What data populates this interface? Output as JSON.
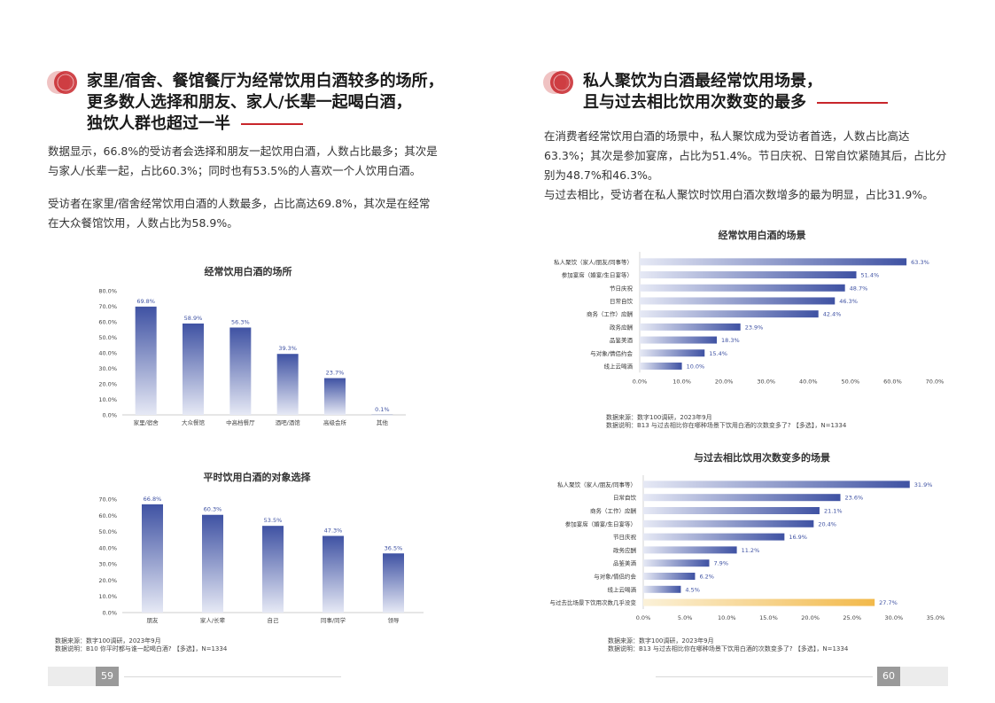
{
  "left": {
    "heading": [
      "家里/宿舍、餐馆餐厅为经常饮用白酒较多的场所，",
      "更多数人选择和朋友、家人/长辈一起喝白酒，",
      "独饮人群也超过一半"
    ],
    "para1": [
      "数据显示，66.8%的受访者会选择和朋友一起饮用白酒，人数占比最多；其次是",
      "与家人/长辈一起，占比60.3%；同时也有53.5%的人喜欢一个人饮用白酒。"
    ],
    "para2": [
      "受访者在家里/宿舍经常饮用白酒的人数最多，占比高达69.8%，其次是在经常",
      "在大众餐馆饮用，人数占比为58.9%。"
    ],
    "source": [
      "数据来源：数字100调研，2023年9月",
      "数据说明：B10 你平时都与谁一起喝白酒? 【多选】，N=1334"
    ],
    "page_number": "59"
  },
  "right": {
    "heading": [
      "私人聚饮为白酒最经常饮用场景，",
      "且与过去相比饮用次数变的最多"
    ],
    "para": [
      "在消费者经常饮用白酒的场景中，私人聚饮成为受访者首选，人数占比高达",
      "63.3%；其次是参加宴席，占比为51.4%。节日庆祝、日常自饮紧随其后，占比分",
      "别为48.7%和46.3%。",
      "与过去相比，受访者在私人聚饮时饮用白酒次数增多的最为明显，占比31.9%。"
    ],
    "source1": [
      "数据来源：数字100调研，2023年9月",
      "数据说明：B13 与过去相比你在哪种场景下饮用白酒的次数变多了? 【多选】，N=1334"
    ],
    "source2": [
      "数据来源：数字100调研，2023年9月",
      "数据说明：B13 与过去相比你在哪种场景下饮用白酒的次数变多了? 【多选】，N=1334"
    ],
    "page_number": "60"
  },
  "colors": {
    "bar_top": "#3f52a3",
    "bar_bottom": "#e6e9f5",
    "accent_red": "#c8262b",
    "highlight_bar": "#f2b94a",
    "label_color": "#3f52a3"
  },
  "chart_data": [
    {
      "id": "places",
      "type": "bar",
      "title": "经常饮用白酒的场所",
      "categories": [
        "家里/宿舍",
        "大众餐馆",
        "中高档餐厅",
        "酒吧/酒馆",
        "高级会所",
        "其他"
      ],
      "values": [
        69.8,
        58.9,
        56.3,
        39.3,
        23.7,
        0.1
      ],
      "labels": [
        "69.8%",
        "58.9%",
        "56.3%",
        "39.3%",
        "23.7%",
        "0.1%"
      ],
      "ylim": [
        0,
        80
      ],
      "yticks": [
        "0.0%",
        "10.0%",
        "20.0%",
        "30.0%",
        "40.0%",
        "50.0%",
        "60.0%",
        "70.0%",
        "80.0%"
      ]
    },
    {
      "id": "companions",
      "type": "bar",
      "title": "平时饮用白酒的对象选择",
      "categories": [
        "朋友",
        "家人/长辈",
        "自己",
        "同事/同学",
        "领导"
      ],
      "values": [
        66.8,
        60.3,
        53.5,
        47.3,
        36.5
      ],
      "labels": [
        "66.8%",
        "60.3%",
        "53.5%",
        "47.3%",
        "36.5%"
      ],
      "ylim": [
        0,
        70
      ],
      "yticks": [
        "0.0%",
        "10.0%",
        "20.0%",
        "30.0%",
        "40.0%",
        "50.0%",
        "60.0%",
        "70.0%"
      ]
    },
    {
      "id": "scenes",
      "type": "bar",
      "orientation": "horizontal",
      "title": "经常饮用白酒的场景",
      "categories": [
        "私人聚饮（家人/朋友/同事等）",
        "参加宴席（婚宴/生日宴等）",
        "节日庆祝",
        "日常自饮",
        "商务（工作）应酬",
        "政务应酬",
        "品鉴美酒",
        "与对象/情侣约会",
        "线上云喝酒"
      ],
      "values": [
        63.3,
        51.4,
        48.7,
        46.3,
        42.4,
        23.9,
        18.3,
        15.4,
        10.0
      ],
      "labels": [
        "63.3%",
        "51.4%",
        "48.7%",
        "46.3%",
        "42.4%",
        "23.9%",
        "18.3%",
        "15.4%",
        "10.0%"
      ],
      "xlim": [
        0,
        70
      ],
      "xticks": [
        "0.0%",
        "10.0%",
        "20.0%",
        "30.0%",
        "40.0%",
        "50.0%",
        "60.0%",
        "70.0%"
      ]
    },
    {
      "id": "increase",
      "type": "bar",
      "orientation": "horizontal",
      "title": "与过去相比饮用次数变多的场景",
      "categories": [
        "私人聚饮（家人/朋友/同事等）",
        "日常自饮",
        "商务（工作）应酬",
        "参加宴席（婚宴/生日宴等）",
        "节日庆祝",
        "政务应酬",
        "品鉴美酒",
        "与对象/情侣约会",
        "线上云喝酒",
        "与过去比场景下饮用次数几乎没变"
      ],
      "values": [
        31.9,
        23.6,
        21.1,
        20.4,
        16.9,
        11.2,
        7.9,
        6.2,
        4.5,
        27.7
      ],
      "labels": [
        "31.9%",
        "23.6%",
        "21.1%",
        "20.4%",
        "16.9%",
        "11.2%",
        "7.9%",
        "6.2%",
        "4.5%",
        "27.7%"
      ],
      "highlight_index": 9,
      "xlim": [
        0,
        35
      ],
      "xticks": [
        "0.0%",
        "5.0%",
        "10.0%",
        "15.0%",
        "20.0%",
        "25.0%",
        "30.0%",
        "35.0%"
      ]
    }
  ]
}
